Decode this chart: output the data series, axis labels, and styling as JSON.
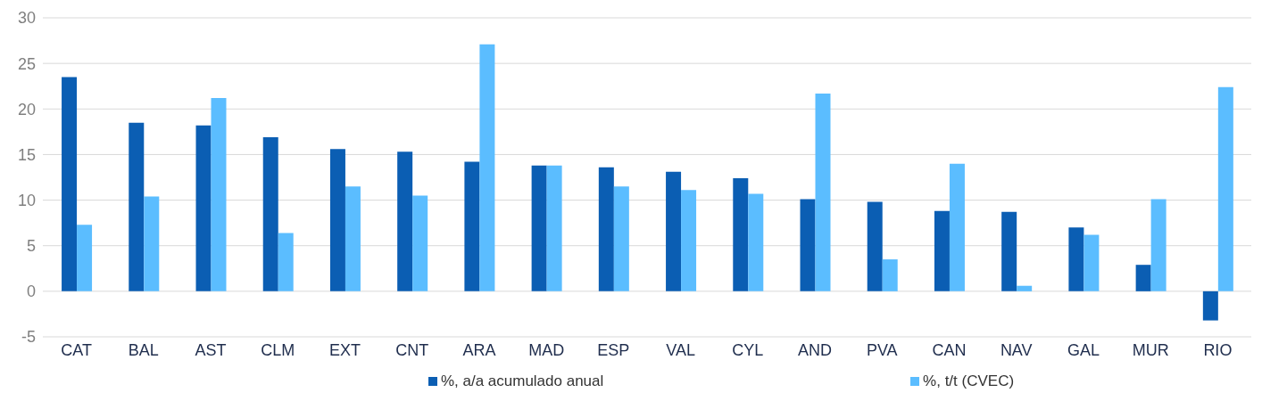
{
  "chart_data": {
    "type": "bar",
    "categories": [
      "CAT",
      "BAL",
      "AST",
      "CLM",
      "EXT",
      "CNT",
      "ARA",
      "MAD",
      "ESP",
      "VAL",
      "CYL",
      "AND",
      "PVA",
      "CAN",
      "NAV",
      "GAL",
      "MUR",
      "RIO"
    ],
    "series": [
      {
        "name": "%, a/a acumulado anual",
        "color": "#0b5eb3",
        "values": [
          23.5,
          18.5,
          18.2,
          16.9,
          15.6,
          15.3,
          14.2,
          13.8,
          13.6,
          13.1,
          12.4,
          10.1,
          9.8,
          8.8,
          8.7,
          7.0,
          2.9,
          -3.2
        ]
      },
      {
        "name": "%, t/t (CVEC)",
        "color": "#5bbdff",
        "values": [
          7.3,
          10.4,
          21.2,
          6.4,
          11.5,
          10.5,
          27.1,
          13.8,
          11.5,
          11.1,
          10.7,
          21.7,
          3.5,
          14.0,
          0.6,
          6.2,
          10.1,
          22.4
        ]
      }
    ],
    "ylim": [
      -5,
      30
    ],
    "yticks": [
      -5,
      0,
      5,
      10,
      15,
      20,
      25,
      30
    ],
    "grid": "y",
    "legend": "bottom"
  }
}
